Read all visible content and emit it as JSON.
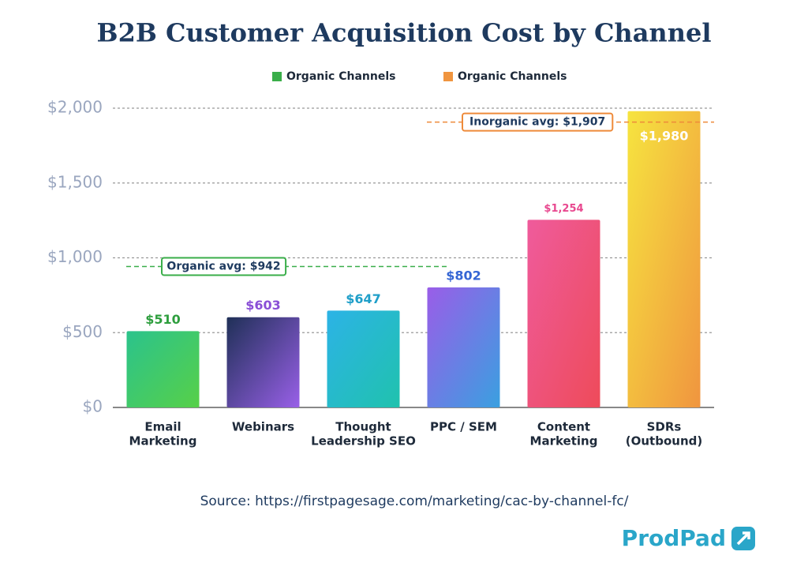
{
  "chart_data": {
    "type": "bar",
    "title": "B2B Customer Acquisition Cost by Channel",
    "legend": [
      {
        "name": "Organic Channels",
        "color": "#3aae4a"
      },
      {
        "name": "Organic Channels",
        "color": "#f0953f"
      }
    ],
    "categories": [
      [
        "Email",
        "Marketing"
      ],
      [
        "Webinars"
      ],
      [
        "Thought",
        "Leadership SEO"
      ],
      [
        "PPC / SEM"
      ],
      [
        "Content",
        "Marketing"
      ],
      [
        "SDRs",
        "(Outbound)"
      ]
    ],
    "values": [
      510,
      603,
      647,
      802,
      1254,
      1980
    ],
    "value_labels": [
      "$510",
      "$603",
      "$647",
      "$802",
      "$1,254",
      "$1,980"
    ],
    "value_label_colors": [
      "#2e9e3e",
      "#8a4fd6",
      "#1f9fc9",
      "#3566d4",
      "#e8488f",
      "#ffffff"
    ],
    "value_label_position": [
      "above",
      "above",
      "above",
      "above",
      "above",
      "inside"
    ],
    "colors": [
      [
        "#2bc38c",
        "#57d048"
      ],
      [
        "#1f3057",
        "#9960e8"
      ],
      [
        "#2cb3e6",
        "#20c2ad"
      ],
      [
        "#9a5de8",
        "#3aa0e0"
      ],
      [
        "#ef5b9c",
        "#ee4b5a"
      ],
      [
        "#f6e43f",
        "#f0953f"
      ]
    ],
    "ylim": [
      0,
      2000
    ],
    "yticks": [
      {
        "value": 0,
        "label": "$0"
      },
      {
        "value": 500,
        "label": "$500"
      },
      {
        "value": 1000,
        "label": "$1,000"
      },
      {
        "value": 1500,
        "label": "$1,500"
      },
      {
        "value": 2000,
        "label": "$2,000"
      }
    ],
    "grid": true,
    "reference_lines": [
      {
        "value": 942,
        "label": "Organic avg: $942",
        "color": "#3aae4a",
        "from": 0,
        "to": 3
      },
      {
        "value": 1907,
        "label": "Inorganic avg: $1,907",
        "color": "#ee8a3a",
        "from": 3,
        "to": 5
      }
    ],
    "source": "Source: https://firstpagesage.com/marketing/cac-by-channel-fc/",
    "brand": "ProdPad"
  }
}
